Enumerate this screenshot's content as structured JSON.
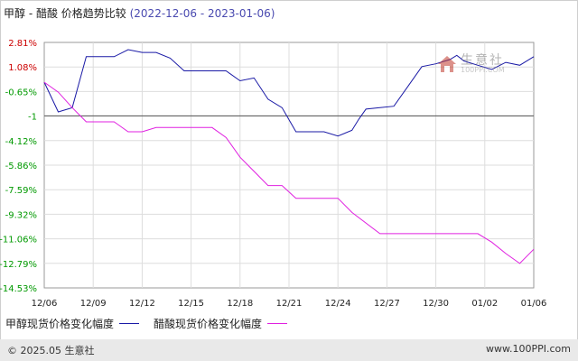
{
  "header": {
    "title": "甲醇 - 醋酸 价格趋势比较",
    "period": "(2022-12-06 - 2023-01-06)"
  },
  "watermark": {
    "brand_cn": "生意社",
    "brand_en": "100PPI.COM"
  },
  "footer": {
    "copyright": "© 2025.05 生意社",
    "site": "www.100PPI.com"
  },
  "colors": {
    "methanol": "#1a1aa6",
    "acetic": "#e020e0",
    "grid": "#dddddd",
    "reference": "#555555",
    "positive_label": "#cc0000",
    "negative_label": "#009900"
  },
  "chart_data": {
    "type": "line",
    "title": "甲醇 - 醋酸 价格趋势比较",
    "xlabel": "",
    "ylabel": "",
    "x_ticks": [
      "12/06",
      "12/09",
      "12/12",
      "12/15",
      "12/18",
      "12/21",
      "12/24",
      "12/27",
      "12/30",
      "01/02",
      "01/06"
    ],
    "y_ticks": [
      "2.81%",
      "1.08%",
      "-0.65%",
      "-1",
      "-4.12%",
      "-5.86%",
      "-7.59%",
      "-9.32%",
      "-11.06%",
      "-12.79%",
      "-14.53%"
    ],
    "ylim": [
      -14.53,
      2.81
    ],
    "reference_line": -2.38,
    "grid": true,
    "legend_position": "bottom-left",
    "series": [
      {
        "name": "甲醇现货价格变化幅度",
        "values": [
          [
            0,
            0
          ],
          [
            1,
            -2.1
          ],
          [
            2,
            -1.8
          ],
          [
            3,
            1.8
          ],
          [
            5,
            1.8
          ],
          [
            6,
            2.3
          ],
          [
            7,
            2.1
          ],
          [
            8,
            2.1
          ],
          [
            9,
            1.7
          ],
          [
            10,
            0.8
          ],
          [
            13,
            0.8
          ],
          [
            14,
            0.1
          ],
          [
            15,
            0.3
          ],
          [
            16,
            -1.2
          ],
          [
            17,
            -1.8
          ],
          [
            18,
            -3.5
          ],
          [
            20,
            -3.5
          ],
          [
            21,
            -3.8
          ],
          [
            22,
            -3.4
          ],
          [
            22.5,
            -2.6
          ],
          [
            23,
            -1.9
          ],
          [
            24,
            -1.8
          ],
          [
            25,
            -1.7
          ],
          [
            26,
            -0.3
          ],
          [
            27,
            1.1
          ],
          [
            28,
            1.3
          ],
          [
            29,
            1.6
          ],
          [
            29.5,
            1.9
          ],
          [
            30,
            1.5
          ],
          [
            31,
            1.2
          ],
          [
            32,
            0.9
          ],
          [
            33,
            1.4
          ],
          [
            34,
            1.2
          ],
          [
            35,
            1.8
          ]
        ]
      },
      {
        "name": "醋酸现货价格变化幅度",
        "values": [
          [
            0,
            0
          ],
          [
            1,
            -0.7
          ],
          [
            2,
            -1.8
          ],
          [
            3,
            -2.8
          ],
          [
            5,
            -2.8
          ],
          [
            6,
            -3.5
          ],
          [
            7,
            -3.5
          ],
          [
            8,
            -3.2
          ],
          [
            12,
            -3.2
          ],
          [
            13,
            -3.9
          ],
          [
            14,
            -5.3
          ],
          [
            15,
            -6.3
          ],
          [
            16,
            -7.3
          ],
          [
            17,
            -7.3
          ],
          [
            18,
            -8.2
          ],
          [
            21,
            -8.2
          ],
          [
            22,
            -9.2
          ],
          [
            24,
            -10.7
          ],
          [
            31,
            -10.7
          ],
          [
            32,
            -11.3
          ],
          [
            33,
            -12.1
          ],
          [
            34,
            -12.8
          ],
          [
            35,
            -11.8
          ]
        ]
      }
    ]
  }
}
